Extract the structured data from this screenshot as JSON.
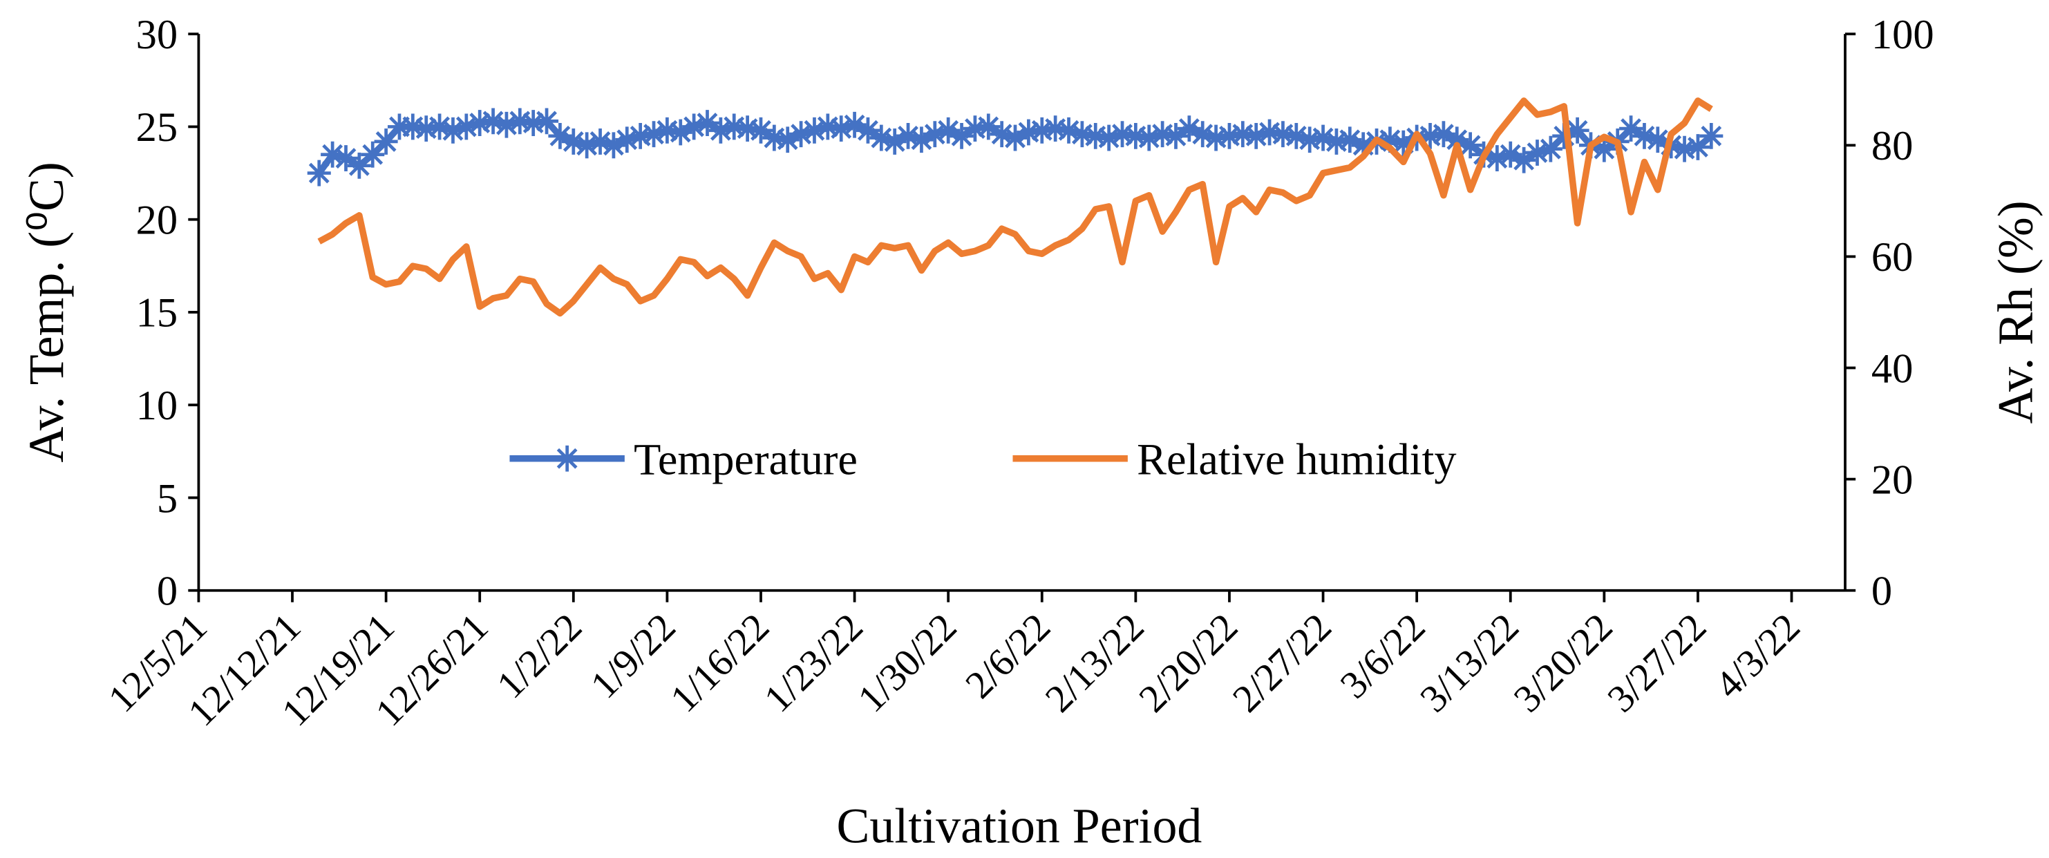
{
  "chart_data": {
    "type": "line",
    "xlabel": "Cultivation Period",
    "ylabel": "Av. Temp. (⁰C)",
    "y2label": "Av. Rh (%)",
    "x": [
      "12/14/21",
      "12/15/21",
      "12/16/21",
      "12/17/21",
      "12/18/21",
      "12/19/21",
      "12/20/21",
      "12/21/21",
      "12/22/21",
      "12/23/21",
      "12/24/21",
      "12/25/21",
      "12/26/21",
      "12/27/21",
      "12/28/21",
      "12/29/21",
      "12/30/21",
      "12/31/21",
      "1/1/22",
      "1/2/22",
      "1/3/22",
      "1/4/22",
      "1/5/22",
      "1/6/22",
      "1/7/22",
      "1/8/22",
      "1/9/22",
      "1/10/22",
      "1/11/22",
      "1/12/22",
      "1/13/22",
      "1/14/22",
      "1/15/22",
      "1/16/22",
      "1/17/22",
      "1/18/22",
      "1/19/22",
      "1/20/22",
      "1/21/22",
      "1/22/22",
      "1/23/22",
      "1/24/22",
      "1/25/22",
      "1/26/22",
      "1/27/22",
      "1/28/22",
      "1/29/22",
      "1/30/22",
      "1/31/22",
      "2/1/22",
      "2/2/22",
      "2/3/22",
      "2/4/22",
      "2/5/22",
      "2/6/22",
      "2/7/22",
      "2/8/22",
      "2/9/22",
      "2/10/22",
      "2/11/22",
      "2/12/22",
      "2/13/22",
      "2/14/22",
      "2/15/22",
      "2/16/22",
      "2/17/22",
      "2/18/22",
      "2/19/22",
      "2/20/22",
      "2/21/22",
      "2/22/22",
      "2/23/22",
      "2/24/22",
      "2/25/22",
      "2/26/22",
      "2/27/22",
      "2/28/22",
      "3/1/22",
      "3/2/22",
      "3/3/22",
      "3/4/22",
      "3/5/22",
      "3/6/22",
      "3/7/22",
      "3/8/22",
      "3/9/22",
      "3/10/22",
      "3/11/22",
      "3/12/22",
      "3/13/22",
      "3/14/22",
      "3/15/22",
      "3/16/22",
      "3/17/22",
      "3/18/22",
      "3/19/22",
      "3/20/22",
      "3/21/22",
      "3/22/22",
      "3/23/22",
      "3/24/22",
      "3/25/22",
      "3/26/22",
      "3/27/22",
      "3/28/22"
    ],
    "xlim": [
      "12/5/21",
      "4/7/22"
    ],
    "xticks": [
      "12/5/21",
      "12/12/21",
      "12/19/21",
      "12/26/21",
      "1/2/22",
      "1/9/22",
      "1/16/22",
      "1/23/22",
      "1/30/22",
      "2/6/22",
      "2/13/22",
      "2/20/22",
      "2/27/22",
      "3/6/22",
      "3/13/22",
      "3/20/22",
      "3/27/22",
      "4/3/22"
    ],
    "ylim": [
      0,
      30
    ],
    "yticks": [
      0,
      5,
      10,
      15,
      20,
      25,
      30
    ],
    "y2lim": [
      0,
      100
    ],
    "y2ticks": [
      0,
      20,
      40,
      60,
      80,
      100
    ],
    "legend": "center",
    "series": [
      {
        "name": "Temperature",
        "color": "#4472c4",
        "marker": "asterisk",
        "axis": "y",
        "values": [
          22.5,
          23.5,
          23.3,
          22.9,
          23.5,
          24.2,
          25.0,
          25.0,
          24.9,
          25.0,
          24.8,
          25.0,
          25.2,
          25.3,
          25.1,
          25.3,
          25.2,
          25.3,
          24.5,
          24.2,
          24.0,
          24.2,
          24.0,
          24.3,
          24.5,
          24.6,
          24.8,
          24.7,
          25.0,
          25.2,
          24.8,
          25.0,
          24.9,
          24.8,
          24.4,
          24.3,
          24.6,
          24.8,
          25.0,
          24.9,
          25.1,
          24.8,
          24.4,
          24.2,
          24.5,
          24.3,
          24.6,
          24.8,
          24.5,
          24.9,
          25.0,
          24.6,
          24.4,
          24.7,
          24.8,
          24.9,
          24.8,
          24.6,
          24.5,
          24.4,
          24.6,
          24.5,
          24.4,
          24.6,
          24.5,
          24.9,
          24.6,
          24.4,
          24.5,
          24.6,
          24.5,
          24.7,
          24.6,
          24.5,
          24.3,
          24.4,
          24.2,
          24.3,
          24.0,
          24.2,
          24.3,
          24.1,
          24.4,
          24.5,
          24.6,
          24.3,
          24.0,
          23.5,
          23.3,
          23.5,
          23.2,
          23.6,
          23.8,
          24.5,
          24.8,
          24.0,
          23.8,
          24.2,
          24.9,
          24.5,
          24.3,
          24.0,
          23.8,
          23.9,
          24.5
        ]
      },
      {
        "name": "Relative humidity",
        "color": "#ed7d31",
        "axis": "y2",
        "values": [
          62.7,
          64,
          66,
          67.4,
          56.3,
          55,
          55.5,
          58.3,
          57.8,
          56,
          59.5,
          61.8,
          51,
          52.5,
          53,
          56,
          55.5,
          51.5,
          49.8,
          52,
          55,
          58,
          56,
          55,
          52,
          53,
          56,
          59.5,
          59,
          56.5,
          58,
          56,
          53,
          58,
          62.5,
          61,
          60,
          56,
          57,
          54,
          60,
          59,
          62,
          61.5,
          62,
          57.5,
          61,
          62.5,
          60.5,
          61,
          62,
          65,
          64,
          61,
          60.5,
          62,
          63,
          65,
          68.5,
          69,
          59,
          70,
          71,
          64.5,
          68,
          72,
          73,
          59,
          69,
          70.5,
          68,
          72,
          71.5,
          70,
          71,
          75,
          75.5,
          76,
          78,
          81,
          79.5,
          77,
          82,
          78.5,
          71,
          80,
          72,
          78,
          82,
          85,
          88,
          85.5,
          86,
          87,
          66,
          80,
          81.5,
          80.5,
          68,
          77,
          72,
          82,
          84,
          88,
          86.5
        ]
      }
    ]
  }
}
